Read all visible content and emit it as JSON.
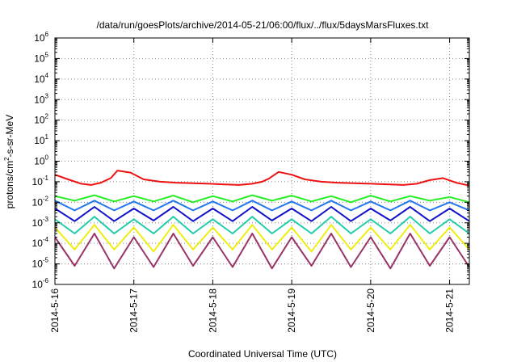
{
  "chart_data": {
    "type": "line",
    "title": "/data/run/goesPlots/archive/2014-05-21/06:00/flux/../flux/5daysMarsFluxes.txt",
    "xlabel": "Coordinated Universal Time (UTC)",
    "ylabel": {
      "prefix": "protons/cm",
      "sup": "2",
      "suffix": "-s-sr-MeV"
    },
    "yscale": "log",
    "ylim": [
      1e-06,
      1000000.0
    ],
    "yticks": [
      {
        "base": "10",
        "exp": "-6",
        "value": 1e-06
      },
      {
        "base": "10",
        "exp": "-5",
        "value": 1e-05
      },
      {
        "base": "10",
        "exp": "-4",
        "value": 0.0001
      },
      {
        "base": "10",
        "exp": "-3",
        "value": 0.001
      },
      {
        "base": "10",
        "exp": "-2",
        "value": 0.01
      },
      {
        "base": "10",
        "exp": "-1",
        "value": 0.1
      },
      {
        "base": "10",
        "exp": "0",
        "value": 1
      },
      {
        "base": "10",
        "exp": "1",
        "value": 10
      },
      {
        "base": "10",
        "exp": "2",
        "value": 100
      },
      {
        "base": "10",
        "exp": "3",
        "value": 1000
      },
      {
        "base": "10",
        "exp": "4",
        "value": 10000
      },
      {
        "base": "10",
        "exp": "5",
        "value": 100000
      },
      {
        "base": "10",
        "exp": "6",
        "value": 1000000
      }
    ],
    "xlim": [
      "2014-05-16 00:00",
      "2014-05-21 06:00"
    ],
    "xticks": [
      "2014-5-16",
      "2014-5-17",
      "2014-5-18",
      "2014-5-19",
      "2014-5-20",
      "2014-5-21"
    ],
    "grid": true,
    "series": [
      {
        "color": "#ee1111",
        "x": [
          "2014-05-16 00:00",
          "2014-05-16 04:00",
          "2014-05-16 08:00",
          "2014-05-16 11:00",
          "2014-05-16 14:00",
          "2014-05-16 17:00",
          "2014-05-16 19:00",
          "2014-05-16 23:00",
          "2014-05-17 03:00",
          "2014-05-17 08:00",
          "2014-05-17 13:00",
          "2014-05-17 18:00",
          "2014-05-17 23:00",
          "2014-05-18 03:00",
          "2014-05-18 08:00",
          "2014-05-18 12:00",
          "2014-05-18 15:00",
          "2014-05-18 17:00",
          "2014-05-18 20:00",
          "2014-05-19 00:00",
          "2014-05-19 04:00",
          "2014-05-19 09:00",
          "2014-05-19 14:00",
          "2014-05-19 19:00",
          "2014-05-20 00:00",
          "2014-05-20 05:00",
          "2014-05-20 10:00",
          "2014-05-20 14:00",
          "2014-05-20 18:00",
          "2014-05-20 22:00",
          "2014-05-21 02:00",
          "2014-05-21 06:00"
        ],
        "y": [
          0.22,
          0.13,
          0.08,
          0.07,
          0.09,
          0.15,
          0.35,
          0.28,
          0.13,
          0.1,
          0.09,
          0.085,
          0.08,
          0.075,
          0.07,
          0.08,
          0.1,
          0.14,
          0.3,
          0.22,
          0.13,
          0.1,
          0.09,
          0.085,
          0.08,
          0.075,
          0.07,
          0.08,
          0.12,
          0.15,
          0.09,
          0.065
        ]
      },
      {
        "color": "#22ee22",
        "x": [
          "2014-05-16 00:00",
          "2014-05-16 06:00",
          "2014-05-16 12:00",
          "2014-05-16 18:00",
          "2014-05-17 00:00",
          "2014-05-17 06:00",
          "2014-05-17 12:00",
          "2014-05-17 18:00",
          "2014-05-18 00:00",
          "2014-05-18 06:00",
          "2014-05-18 12:00",
          "2014-05-18 18:00",
          "2014-05-19 00:00",
          "2014-05-19 06:00",
          "2014-05-19 12:00",
          "2014-05-19 18:00",
          "2014-05-20 00:00",
          "2014-05-20 06:00",
          "2014-05-20 12:00",
          "2014-05-20 18:00",
          "2014-05-21 00:00",
          "2014-05-21 06:00"
        ],
        "y": [
          0.02,
          0.012,
          0.022,
          0.011,
          0.02,
          0.011,
          0.021,
          0.01,
          0.02,
          0.011,
          0.022,
          0.012,
          0.021,
          0.011,
          0.02,
          0.01,
          0.021,
          0.011,
          0.02,
          0.012,
          0.018,
          0.01
        ]
      },
      {
        "color": "#2277ee",
        "x": [
          "2014-05-16 00:00",
          "2014-05-16 06:00",
          "2014-05-16 12:00",
          "2014-05-16 18:00",
          "2014-05-17 00:00",
          "2014-05-17 06:00",
          "2014-05-17 12:00",
          "2014-05-17 18:00",
          "2014-05-18 00:00",
          "2014-05-18 06:00",
          "2014-05-18 12:00",
          "2014-05-18 18:00",
          "2014-05-19 00:00",
          "2014-05-19 06:00",
          "2014-05-19 12:00",
          "2014-05-19 18:00",
          "2014-05-20 00:00",
          "2014-05-20 06:00",
          "2014-05-20 12:00",
          "2014-05-20 18:00",
          "2014-05-21 00:00",
          "2014-05-21 06:00"
        ],
        "y": [
          0.012,
          0.004,
          0.012,
          0.004,
          0.011,
          0.004,
          0.012,
          0.004,
          0.011,
          0.004,
          0.012,
          0.004,
          0.011,
          0.004,
          0.012,
          0.004,
          0.011,
          0.004,
          0.012,
          0.004,
          0.01,
          0.004
        ]
      },
      {
        "color": "#1111cc",
        "x": [
          "2014-05-16 00:00",
          "2014-05-16 06:00",
          "2014-05-16 12:00",
          "2014-05-16 18:00",
          "2014-05-17 00:00",
          "2014-05-17 06:00",
          "2014-05-17 12:00",
          "2014-05-17 18:00",
          "2014-05-18 00:00",
          "2014-05-18 06:00",
          "2014-05-18 12:00",
          "2014-05-18 18:00",
          "2014-05-19 00:00",
          "2014-05-19 06:00",
          "2014-05-19 12:00",
          "2014-05-19 18:00",
          "2014-05-20 00:00",
          "2014-05-20 06:00",
          "2014-05-20 12:00",
          "2014-05-20 18:00",
          "2014-05-21 00:00",
          "2014-05-21 06:00"
        ],
        "y": [
          0.005,
          0.0012,
          0.006,
          0.0012,
          0.005,
          0.0013,
          0.006,
          0.0012,
          0.005,
          0.0012,
          0.006,
          0.0013,
          0.005,
          0.0012,
          0.006,
          0.0012,
          0.005,
          0.0013,
          0.006,
          0.0012,
          0.005,
          0.0012
        ]
      },
      {
        "color": "#22ccaa",
        "x": [
          "2014-05-16 00:00",
          "2014-05-16 06:00",
          "2014-05-16 12:00",
          "2014-05-16 18:00",
          "2014-05-17 00:00",
          "2014-05-17 06:00",
          "2014-05-17 12:00",
          "2014-05-17 18:00",
          "2014-05-18 00:00",
          "2014-05-18 06:00",
          "2014-05-18 12:00",
          "2014-05-18 18:00",
          "2014-05-19 00:00",
          "2014-05-19 06:00",
          "2014-05-19 12:00",
          "2014-05-19 18:00",
          "2014-05-20 00:00",
          "2014-05-20 06:00",
          "2014-05-20 12:00",
          "2014-05-20 18:00",
          "2014-05-21 00:00",
          "2014-05-21 06:00"
        ],
        "y": [
          0.0015,
          0.0003,
          0.002,
          0.0003,
          0.0015,
          0.0003,
          0.002,
          0.0003,
          0.0015,
          0.0003,
          0.002,
          0.0003,
          0.0015,
          0.0003,
          0.002,
          0.0003,
          0.0015,
          0.0003,
          0.002,
          0.0003,
          0.0015,
          0.0003
        ]
      },
      {
        "color": "#eeee11",
        "x": [
          "2014-05-16 00:00",
          "2014-05-16 06:00",
          "2014-05-16 12:00",
          "2014-05-16 18:00",
          "2014-05-17 00:00",
          "2014-05-17 06:00",
          "2014-05-17 12:00",
          "2014-05-17 18:00",
          "2014-05-18 00:00",
          "2014-05-18 06:00",
          "2014-05-18 12:00",
          "2014-05-18 18:00",
          "2014-05-19 00:00",
          "2014-05-19 06:00",
          "2014-05-19 12:00",
          "2014-05-19 18:00",
          "2014-05-20 00:00",
          "2014-05-20 06:00",
          "2014-05-20 12:00",
          "2014-05-20 18:00",
          "2014-05-21 00:00",
          "2014-05-21 06:00"
        ],
        "y": [
          0.0006,
          5e-05,
          0.0008,
          5e-05,
          0.0006,
          4e-05,
          0.0008,
          5e-05,
          0.0006,
          5e-05,
          0.0008,
          5e-05,
          0.0006,
          4e-05,
          0.0008,
          5e-05,
          0.0006,
          5e-05,
          0.0008,
          5e-05,
          0.0006,
          5e-05
        ]
      },
      {
        "color": "#993366",
        "x": [
          "2014-05-16 00:00",
          "2014-05-16 06:00",
          "2014-05-16 12:00",
          "2014-05-16 18:00",
          "2014-05-17 00:00",
          "2014-05-17 06:00",
          "2014-05-17 12:00",
          "2014-05-17 18:00",
          "2014-05-18 00:00",
          "2014-05-18 06:00",
          "2014-05-18 12:00",
          "2014-05-18 18:00",
          "2014-05-19 00:00",
          "2014-05-19 06:00",
          "2014-05-19 12:00",
          "2014-05-19 18:00",
          "2014-05-20 00:00",
          "2014-05-20 06:00",
          "2014-05-20 12:00",
          "2014-05-20 18:00",
          "2014-05-21 00:00",
          "2014-05-21 06:00"
        ],
        "y": [
          0.0002,
          8e-06,
          0.0003,
          6e-06,
          0.0002,
          7e-06,
          0.0003,
          8e-06,
          0.0002,
          7e-06,
          0.0003,
          6e-06,
          0.0002,
          8e-06,
          0.0003,
          7e-06,
          0.0002,
          6e-06,
          0.0003,
          8e-06,
          0.0002,
          7e-06
        ]
      }
    ]
  }
}
